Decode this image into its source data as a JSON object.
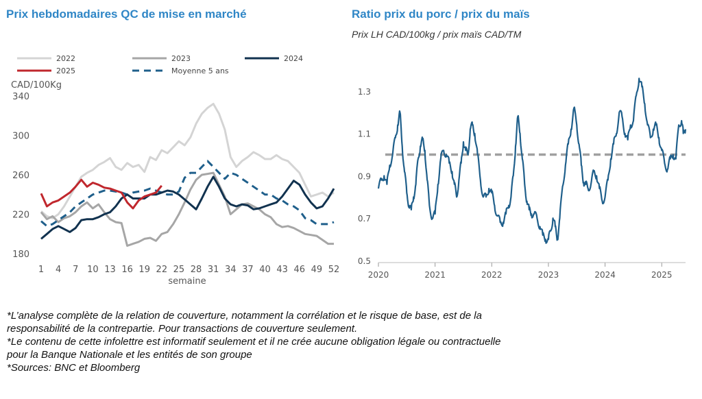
{
  "left_chart": {
    "title": "Prix hebdomadaires QC de mise en marché"
  },
  "right_chart": {
    "title": "Ratio prix du porc / prix du maïs",
    "subtitle": "Prix LH CAD/100kg / prix maïs CAD/TM"
  },
  "footnotes": [
    "*L’analyse complète de la relation de couverture, notamment la corrélation et le risque de base, est de la\nresponsabilité de la contrepartie. Pour transactions de couverture seulement.",
    "*Le contenu de cette infolettre est informatif seulement et il ne crée aucune obligation légale ou contractuelle\npour la Banque Nationale et les entités de son groupe",
    "*Sources: BNC et Bloomberg"
  ],
  "colors": {
    "title": "#2f86c6",
    "y2022": "#d4d4d4",
    "y2023": "#a6a6a6",
    "y2024": "#11324f",
    "y2025": "#c0272d",
    "avg": "#1f5f8b",
    "ratio": "#1f5f8b",
    "ref": "#a0a0a0"
  },
  "chart_data": [
    {
      "type": "line",
      "title": "Prix hebdomadaires QC de mise en marché",
      "ylabel": "CAD/100Kg",
      "xlabel": "semaine",
      "xlim": [
        1,
        52
      ],
      "ylim": [
        180,
        340
      ],
      "xticks": [
        1,
        4,
        7,
        10,
        13,
        16,
        19,
        22,
        25,
        28,
        31,
        34,
        37,
        40,
        43,
        46,
        49,
        52
      ],
      "yticks": [
        180,
        220,
        260,
        300,
        340
      ],
      "legend": "top",
      "series": [
        {
          "name": "2022",
          "x": [
            1,
            2,
            3,
            4,
            5,
            6,
            7,
            8,
            9,
            10,
            11,
            12,
            13,
            14,
            15,
            16,
            17,
            18,
            19,
            20,
            21,
            22,
            23,
            24,
            25,
            26,
            27,
            28,
            29,
            30,
            31,
            32,
            33,
            34,
            35,
            36,
            37,
            38,
            39,
            40,
            41,
            42,
            43,
            44,
            45,
            46,
            47,
            48,
            49,
            50,
            51,
            52
          ],
          "values": [
            223,
            218,
            216,
            220,
            228,
            238,
            248,
            258,
            262,
            265,
            270,
            273,
            277,
            268,
            265,
            272,
            268,
            270,
            263,
            278,
            275,
            285,
            282,
            288,
            294,
            290,
            298,
            312,
            322,
            328,
            332,
            322,
            306,
            278,
            268,
            274,
            278,
            283,
            280,
            276,
            276,
            280,
            276,
            274,
            268,
            262,
            250,
            238,
            240,
            242,
            238,
            242
          ]
        },
        {
          "name": "2023",
          "x": [
            1,
            2,
            3,
            4,
            5,
            6,
            7,
            8,
            9,
            10,
            11,
            12,
            13,
            14,
            15,
            16,
            17,
            18,
            19,
            20,
            21,
            22,
            23,
            24,
            25,
            26,
            27,
            28,
            29,
            30,
            31,
            32,
            33,
            34,
            35,
            36,
            37,
            38,
            39,
            40,
            41,
            42,
            43,
            44,
            45,
            46,
            47,
            48,
            49,
            50,
            51,
            52
          ],
          "values": [
            222,
            215,
            218,
            212,
            216,
            218,
            222,
            228,
            232,
            226,
            230,
            222,
            215,
            212,
            211,
            188,
            190,
            192,
            195,
            196,
            193,
            200,
            202,
            210,
            220,
            232,
            245,
            255,
            260,
            261,
            262,
            250,
            238,
            220,
            225,
            230,
            231,
            228,
            225,
            220,
            217,
            210,
            207,
            208,
            206,
            203,
            200,
            199,
            198,
            194,
            190,
            190
          ]
        },
        {
          "name": "2024",
          "x": [
            1,
            2,
            3,
            4,
            5,
            6,
            7,
            8,
            9,
            10,
            11,
            12,
            13,
            14,
            15,
            16,
            17,
            18,
            19,
            20,
            21,
            22,
            23,
            24,
            25,
            26,
            27,
            28,
            29,
            30,
            31,
            32,
            33,
            34,
            35,
            36,
            37,
            38,
            39,
            40,
            41,
            42,
            43,
            44,
            45,
            46,
            47,
            48,
            49,
            50,
            51,
            52
          ],
          "values": [
            195,
            200,
            205,
            208,
            205,
            202,
            206,
            214,
            215,
            215,
            217,
            220,
            222,
            228,
            236,
            240,
            236,
            236,
            236,
            240,
            240,
            242,
            244,
            243,
            240,
            235,
            230,
            225,
            236,
            248,
            258,
            248,
            236,
            230,
            228,
            230,
            229,
            225,
            226,
            228,
            230,
            232,
            238,
            246,
            254,
            250,
            240,
            232,
            226,
            228,
            236,
            246
          ]
        },
        {
          "name": "2025",
          "x": [
            1,
            2,
            3,
            4,
            5,
            6,
            7,
            8,
            9,
            10,
            11,
            12,
            13,
            14,
            15,
            16,
            17,
            18,
            19,
            20,
            21,
            22
          ],
          "values": [
            241,
            228,
            232,
            234,
            238,
            242,
            248,
            255,
            248,
            252,
            250,
            247,
            246,
            244,
            242,
            232,
            226,
            234,
            238,
            240,
            242,
            249
          ]
        },
        {
          "name": "Moyenne 5 ans",
          "x": [
            1,
            2,
            3,
            4,
            5,
            6,
            7,
            8,
            9,
            10,
            11,
            12,
            13,
            14,
            15,
            16,
            17,
            18,
            19,
            20,
            21,
            22,
            23,
            24,
            25,
            26,
            27,
            28,
            29,
            30,
            31,
            32,
            33,
            34,
            35,
            36,
            37,
            38,
            39,
            40,
            41,
            42,
            43,
            44,
            45,
            46,
            47,
            48,
            49,
            50,
            51,
            52
          ],
          "values": [
            213,
            208,
            210,
            214,
            218,
            222,
            228,
            232,
            236,
            240,
            242,
            244,
            244,
            243,
            242,
            240,
            242,
            243,
            244,
            246,
            244,
            242,
            240,
            240,
            243,
            257,
            262,
            262,
            268,
            274,
            268,
            262,
            256,
            262,
            260,
            256,
            252,
            248,
            244,
            240,
            240,
            236,
            234,
            230,
            228,
            224,
            216,
            214,
            210,
            210,
            210,
            212
          ]
        }
      ]
    },
    {
      "type": "line",
      "title": "Ratio prix du porc / prix du maïs",
      "subtitle": "Prix LH CAD/100kg / prix maïs CAD/TM",
      "xlim": [
        2020.0,
        2025.42
      ],
      "ylim": [
        0.5,
        1.4
      ],
      "xticks": [
        2020,
        2021,
        2022,
        2023,
        2024,
        2025
      ],
      "yticks": [
        0.5,
        0.7,
        0.9,
        1.1,
        1.3
      ],
      "reference_line": 1.0,
      "series": [
        {
          "name": "",
          "x": [
            2020.0,
            2020.05,
            2020.1,
            2020.15,
            2020.2,
            2020.25,
            2020.3,
            2020.34,
            2020.38,
            2020.42,
            2020.46,
            2020.5,
            2020.54,
            2020.58,
            2020.62,
            2020.66,
            2020.7,
            2020.74,
            2020.78,
            2020.82,
            2020.86,
            2020.9,
            2020.95,
            2021.0,
            2021.05,
            2021.1,
            2021.15,
            2021.2,
            2021.25,
            2021.3,
            2021.34,
            2021.38,
            2021.42,
            2021.46,
            2021.5,
            2021.54,
            2021.58,
            2021.62,
            2021.66,
            2021.7,
            2021.75,
            2021.8,
            2021.85,
            2021.9,
            2021.95,
            2022.0,
            2022.05,
            2022.1,
            2022.15,
            2022.2,
            2022.25,
            2022.3,
            2022.34,
            2022.38,
            2022.42,
            2022.46,
            2022.5,
            2022.54,
            2022.58,
            2022.62,
            2022.66,
            2022.7,
            2022.75,
            2022.8,
            2022.85,
            2022.9,
            2022.95,
            2023.0,
            2023.04,
            2023.08,
            2023.12,
            2023.16,
            2023.2,
            2023.25,
            2023.3,
            2023.35,
            2023.4,
            2023.45,
            2023.5,
            2023.54,
            2023.58,
            2023.62,
            2023.66,
            2023.7,
            2023.75,
            2023.8,
            2023.85,
            2023.9,
            2023.95,
            2024.0,
            2024.05,
            2024.1,
            2024.15,
            2024.2,
            2024.25,
            2024.3,
            2024.35,
            2024.4,
            2024.45,
            2024.5,
            2024.55,
            2024.6,
            2024.65,
            2024.7,
            2024.75,
            2024.8,
            2024.85,
            2024.9,
            2024.95,
            2025.0,
            2025.05,
            2025.1,
            2025.15,
            2025.2,
            2025.25,
            2025.3,
            2025.35,
            2025.38,
            2025.42
          ],
          "values": [
            0.84,
            0.88,
            0.9,
            0.86,
            0.95,
            1.0,
            1.08,
            1.14,
            1.2,
            1.04,
            0.92,
            0.82,
            0.76,
            0.74,
            0.8,
            0.86,
            0.98,
            1.04,
            1.07,
            1.02,
            0.88,
            0.76,
            0.7,
            0.72,
            0.86,
            0.98,
            1.02,
            1.0,
            0.96,
            0.92,
            0.86,
            0.8,
            0.88,
            0.96,
            1.06,
            1.02,
            1.0,
            1.12,
            1.14,
            1.1,
            1.0,
            0.88,
            0.8,
            0.8,
            0.84,
            0.82,
            0.76,
            0.71,
            0.68,
            0.68,
            0.72,
            0.76,
            0.8,
            0.9,
            1.04,
            1.18,
            1.1,
            0.98,
            0.86,
            0.78,
            0.74,
            0.72,
            0.72,
            0.7,
            0.66,
            0.62,
            0.6,
            0.6,
            0.64,
            0.7,
            0.66,
            0.6,
            0.7,
            0.85,
            0.95,
            1.05,
            1.12,
            1.22,
            1.14,
            1.05,
            0.95,
            0.87,
            0.86,
            0.84,
            0.86,
            0.92,
            0.9,
            0.84,
            0.78,
            0.8,
            0.88,
            0.98,
            1.05,
            1.1,
            1.2,
            1.18,
            1.1,
            1.07,
            1.14,
            1.16,
            1.28,
            1.36,
            1.32,
            1.24,
            1.14,
            1.08,
            1.12,
            1.14,
            1.08,
            1.02,
            0.96,
            0.93,
            0.98,
            1.0,
            0.98,
            1.14,
            1.16,
            1.1,
            1.12
          ]
        }
      ]
    }
  ]
}
